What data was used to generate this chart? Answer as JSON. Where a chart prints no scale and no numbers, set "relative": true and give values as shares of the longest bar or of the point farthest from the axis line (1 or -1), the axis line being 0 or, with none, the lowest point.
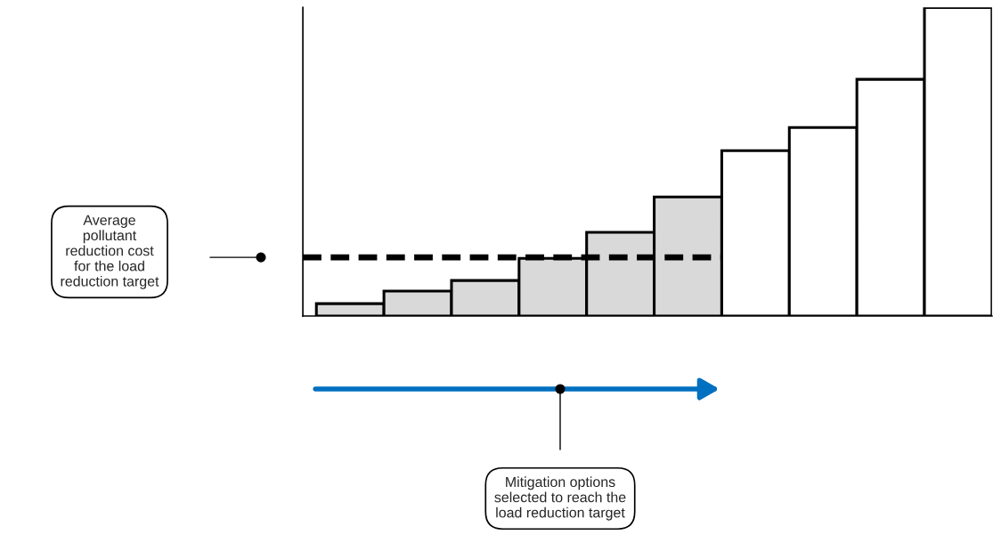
{
  "chart_data": {
    "type": "bar",
    "relative": true,
    "categories": [
      null,
      null,
      null,
      null,
      null,
      null,
      null,
      null,
      null,
      null
    ],
    "values": [
      0.04,
      0.081,
      0.115,
      0.187,
      0.271,
      0.386,
      0.536,
      0.611,
      0.767,
      1.0
    ],
    "colors": [
      "#d9d9d9",
      "#d9d9d9",
      "#d9d9d9",
      "#d9d9d9",
      "#d9d9d9",
      "#d9d9d9",
      "#ffffff",
      "#ffffff",
      "#ffffff",
      "#ffffff"
    ],
    "ref_lines": [
      {
        "axis": "y",
        "value": 0.19,
        "label": "Average\npollutant\nreduction cost\nfor the load\nreduction target",
        "color": "#000000",
        "line_style": "dashed"
      }
    ],
    "annotations": [
      "Mitigation options\nselected to reach the\nload reduction target"
    ],
    "grid": false,
    "legend": false
  }
}
